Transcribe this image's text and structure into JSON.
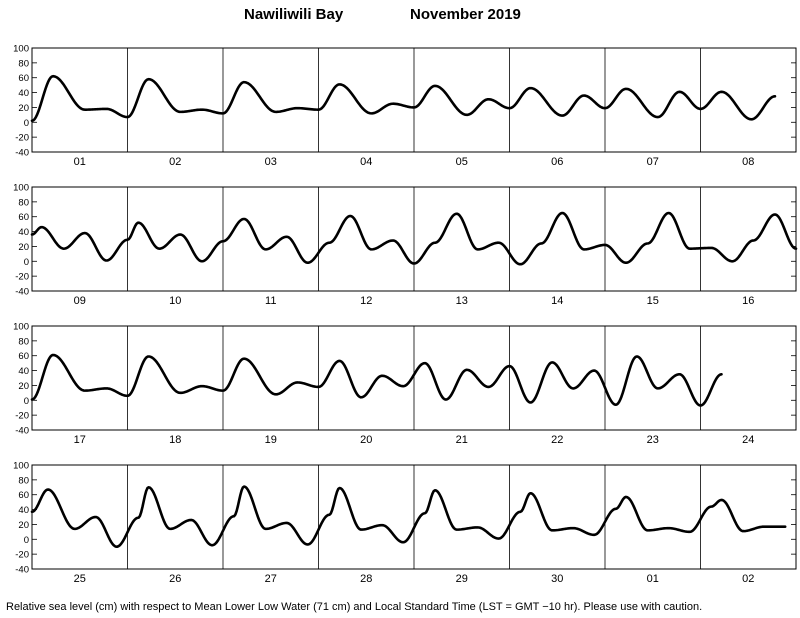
{
  "title": {
    "location": "Nawiliwili Bay",
    "month_year": "November   2019"
  },
  "footnote": "Relative sea level (cm) with respect to Mean Lower Low Water (71 cm) and Local Standard Time (LST = GMT −10 hr). Please use with caution.",
  "colors": {
    "curve": "#000000",
    "axis": "#000000",
    "background": "#ffffff"
  },
  "chart_data": {
    "type": "line",
    "ylim": [
      -40,
      100
    ],
    "yticks": [
      -40,
      -20,
      0,
      20,
      40,
      60,
      80,
      100
    ],
    "ylabel": "Relative sea level (cm)",
    "grid": false,
    "panels": [
      {
        "days": [
          "01",
          "02",
          "03",
          "04",
          "05",
          "06",
          "07",
          "08"
        ],
        "extremes": [
          [
            0.0,
            2
          ],
          [
            0.33,
            62
          ],
          [
            0.83,
            17
          ],
          [
            1.17,
            18
          ],
          [
            1.5,
            7
          ],
          [
            1.83,
            58
          ],
          [
            2.33,
            14
          ],
          [
            2.67,
            17
          ],
          [
            3.0,
            12
          ],
          [
            3.33,
            54
          ],
          [
            3.83,
            14
          ],
          [
            4.17,
            19
          ],
          [
            4.5,
            17
          ],
          [
            4.83,
            51
          ],
          [
            5.33,
            12
          ],
          [
            5.67,
            25
          ],
          [
            6.0,
            20
          ],
          [
            6.33,
            49
          ],
          [
            6.83,
            10
          ],
          [
            7.17,
            31
          ],
          [
            7.5,
            19
          ],
          [
            7.83,
            46
          ],
          [
            8.33,
            9
          ],
          [
            8.67,
            36
          ],
          [
            9.0,
            19
          ],
          [
            9.33,
            45
          ],
          [
            9.83,
            7
          ],
          [
            10.17,
            41
          ],
          [
            10.5,
            18
          ],
          [
            10.83,
            41
          ],
          [
            11.3,
            4
          ],
          [
            11.67,
            35
          ]
        ]
      },
      {
        "days": [
          "09",
          "10",
          "11",
          "12",
          "13",
          "14",
          "15",
          "16"
        ],
        "extremes": [
          [
            0.0,
            36
          ],
          [
            0.15,
            46
          ],
          [
            0.5,
            17
          ],
          [
            0.83,
            38
          ],
          [
            1.17,
            1
          ],
          [
            1.5,
            29
          ],
          [
            1.67,
            52
          ],
          [
            2.0,
            17
          ],
          [
            2.33,
            36
          ],
          [
            2.67,
            0
          ],
          [
            3.0,
            27
          ],
          [
            3.33,
            57
          ],
          [
            3.67,
            16
          ],
          [
            4.0,
            33
          ],
          [
            4.33,
            -2
          ],
          [
            4.67,
            25
          ],
          [
            5.0,
            61
          ],
          [
            5.33,
            16
          ],
          [
            5.67,
            28
          ],
          [
            6.0,
            -3
          ],
          [
            6.33,
            25
          ],
          [
            6.67,
            64
          ],
          [
            7.0,
            16
          ],
          [
            7.33,
            25
          ],
          [
            7.67,
            -4
          ],
          [
            8.0,
            24
          ],
          [
            8.33,
            65
          ],
          [
            8.67,
            16
          ],
          [
            9.0,
            22
          ],
          [
            9.33,
            -2
          ],
          [
            9.67,
            24
          ],
          [
            10.0,
            65
          ],
          [
            10.33,
            17
          ],
          [
            10.67,
            18
          ],
          [
            11.0,
            0
          ],
          [
            11.33,
            28
          ],
          [
            11.67,
            63
          ],
          [
            12.0,
            17
          ],
          [
            12.33,
            15
          ],
          [
            12.67,
            0
          ]
        ]
      },
      {
        "days": [
          "17",
          "18",
          "19",
          "20",
          "21",
          "22",
          "23",
          "24"
        ],
        "extremes": [
          [
            0.0,
            1
          ],
          [
            0.33,
            61
          ],
          [
            0.83,
            13
          ],
          [
            1.17,
            16
          ],
          [
            1.5,
            6
          ],
          [
            1.83,
            59
          ],
          [
            2.33,
            10
          ],
          [
            2.67,
            19
          ],
          [
            3.0,
            13
          ],
          [
            3.33,
            56
          ],
          [
            3.83,
            8
          ],
          [
            4.17,
            24
          ],
          [
            4.5,
            18
          ],
          [
            4.83,
            53
          ],
          [
            5.17,
            4
          ],
          [
            5.5,
            33
          ],
          [
            5.83,
            19
          ],
          [
            6.17,
            50
          ],
          [
            6.5,
            1
          ],
          [
            6.83,
            41
          ],
          [
            7.17,
            18
          ],
          [
            7.5,
            46
          ],
          [
            7.83,
            -3
          ],
          [
            8.17,
            51
          ],
          [
            8.5,
            16
          ],
          [
            8.83,
            40
          ],
          [
            9.17,
            -6
          ],
          [
            9.5,
            59
          ],
          [
            9.83,
            16
          ],
          [
            10.17,
            35
          ],
          [
            10.5,
            -7
          ],
          [
            10.83,
            35
          ]
        ]
      },
      {
        "days": [
          "25",
          "26",
          "27",
          "28",
          "29",
          "30",
          "01",
          "02"
        ],
        "extremes": [
          [
            0.0,
            37
          ],
          [
            0.25,
            67
          ],
          [
            0.67,
            14
          ],
          [
            1.0,
            30
          ],
          [
            1.33,
            -10
          ],
          [
            1.67,
            29
          ],
          [
            1.83,
            70
          ],
          [
            2.17,
            14
          ],
          [
            2.5,
            26
          ],
          [
            2.83,
            -8
          ],
          [
            3.17,
            31
          ],
          [
            3.33,
            71
          ],
          [
            3.67,
            14
          ],
          [
            4.0,
            22
          ],
          [
            4.33,
            -7
          ],
          [
            4.67,
            33
          ],
          [
            4.83,
            69
          ],
          [
            5.17,
            13
          ],
          [
            5.5,
            19
          ],
          [
            5.83,
            -4
          ],
          [
            6.17,
            35
          ],
          [
            6.33,
            66
          ],
          [
            6.67,
            13
          ],
          [
            7.0,
            16
          ],
          [
            7.33,
            1
          ],
          [
            7.67,
            37
          ],
          [
            7.83,
            62
          ],
          [
            8.17,
            12
          ],
          [
            8.5,
            15
          ],
          [
            8.83,
            6
          ],
          [
            9.17,
            41
          ],
          [
            9.33,
            57
          ],
          [
            9.67,
            12
          ],
          [
            10.0,
            15
          ],
          [
            10.33,
            10
          ],
          [
            10.67,
            44
          ],
          [
            10.83,
            53
          ],
          [
            11.17,
            11
          ],
          [
            11.5,
            17
          ],
          [
            11.83,
            17
          ]
        ]
      }
    ]
  }
}
